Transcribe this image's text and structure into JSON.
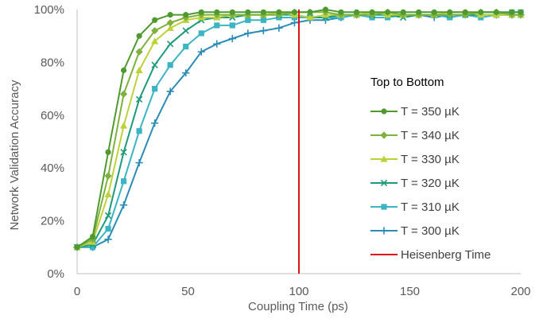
{
  "chart_data": {
    "type": "line",
    "xlabel": "Coupling Time (ps)",
    "ylabel": "Network Validation Accuracy",
    "xlim": [
      0,
      200
    ],
    "ylim": [
      0,
      100
    ],
    "x_ticks": [
      "0",
      "50",
      "100",
      "150",
      "200"
    ],
    "y_ticks": [
      "0%",
      "20%",
      "40%",
      "60%",
      "80%",
      "100%"
    ],
    "grid": false,
    "legend_title": "Top to Bottom",
    "legend_position": "right",
    "vertical_line": {
      "name": "Heisenberg Time",
      "x": 100,
      "color": "#e0101a"
    },
    "x": [
      0,
      7,
      14,
      21,
      28,
      35,
      42,
      49,
      56,
      63,
      70,
      77,
      84,
      91,
      98,
      105,
      112,
      119,
      126,
      133,
      140,
      147,
      154,
      161,
      168,
      175,
      182,
      189,
      196,
      200
    ],
    "series": [
      {
        "name": "T = 350 µK",
        "color": "#4e9a2e",
        "marker": "circle",
        "values": [
          10,
          14,
          46,
          77,
          90,
          96,
          98,
          98,
          99,
          99,
          99,
          99,
          99,
          99,
          99,
          99,
          100,
          99,
          99,
          99,
          99,
          99,
          99,
          99,
          99,
          99,
          99,
          99,
          99,
          99
        ]
      },
      {
        "name": "T = 340 µK",
        "color": "#7fb13d",
        "marker": "diamond",
        "values": [
          10,
          13,
          37,
          68,
          84,
          92,
          95,
          97,
          98,
          98,
          98,
          98,
          98,
          98,
          99,
          99,
          99,
          98,
          98,
          98,
          99,
          98,
          98,
          98,
          98,
          98,
          99,
          99,
          98,
          98
        ]
      },
      {
        "name": "T = 330 µK",
        "color": "#bdd23a",
        "marker": "triangle",
        "values": [
          10,
          12,
          30,
          56,
          77,
          88,
          93,
          96,
          97,
          97,
          98,
          98,
          98,
          99,
          98,
          97,
          98,
          98,
          98,
          99,
          98,
          98,
          98,
          98,
          99,
          99,
          98,
          98,
          98,
          98
        ]
      },
      {
        "name": "T = 320 µK",
        "color": "#1c9a7a",
        "marker": "x",
        "values": [
          10,
          11,
          22,
          46,
          66,
          79,
          87,
          92,
          96,
          97,
          97,
          98,
          98,
          98,
          98,
          97,
          97,
          98,
          98,
          98,
          98,
          97,
          98,
          98,
          98,
          98,
          98,
          98,
          98,
          98
        ]
      },
      {
        "name": "T = 310 µK",
        "color": "#3bb4c4",
        "marker": "square",
        "values": [
          10,
          10,
          17,
          35,
          54,
          70,
          79,
          86,
          91,
          94,
          94,
          96,
          96,
          97,
          97,
          97,
          97,
          97,
          98,
          97,
          97,
          98,
          98,
          98,
          97,
          98,
          97,
          98,
          99,
          99
        ]
      },
      {
        "name": "T = 300 µK",
        "color": "#2b8cb6",
        "marker": "plus",
        "values": [
          10,
          10,
          13,
          26,
          42,
          57,
          69,
          76,
          84,
          87,
          89,
          91,
          92,
          93,
          95,
          96,
          96,
          97,
          98,
          98,
          98,
          98,
          98,
          97,
          98,
          98,
          98,
          98,
          98,
          98
        ]
      }
    ]
  }
}
